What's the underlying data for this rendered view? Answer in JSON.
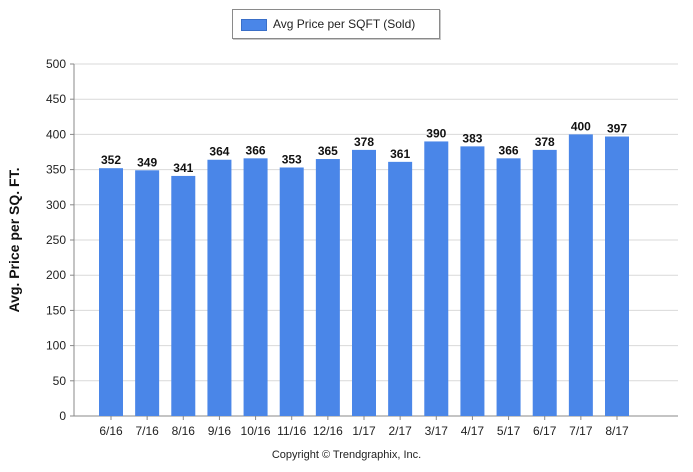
{
  "chart_data": {
    "type": "bar",
    "categories": [
      "6/16",
      "7/16",
      "8/16",
      "9/16",
      "10/16",
      "11/16",
      "12/16",
      "1/17",
      "2/17",
      "3/17",
      "4/17",
      "5/17",
      "6/17",
      "7/17",
      "8/17"
    ],
    "series": [
      {
        "name": "Avg Price per SQFT (Sold)",
        "values": [
          352,
          349,
          341,
          364,
          366,
          353,
          365,
          378,
          361,
          390,
          383,
          366,
          378,
          400,
          397
        ],
        "color": "#4a86e8"
      }
    ],
    "title": "",
    "xlabel": "",
    "ylabel": "Avg. Price per SQ. FT.",
    "ylim": [
      0,
      500
    ],
    "yticks": [
      0,
      50,
      100,
      150,
      200,
      250,
      300,
      350,
      400,
      450,
      500
    ],
    "grid": true,
    "legend_position": "top-center"
  },
  "copyright": "Copyright © Trendgraphix, Inc."
}
